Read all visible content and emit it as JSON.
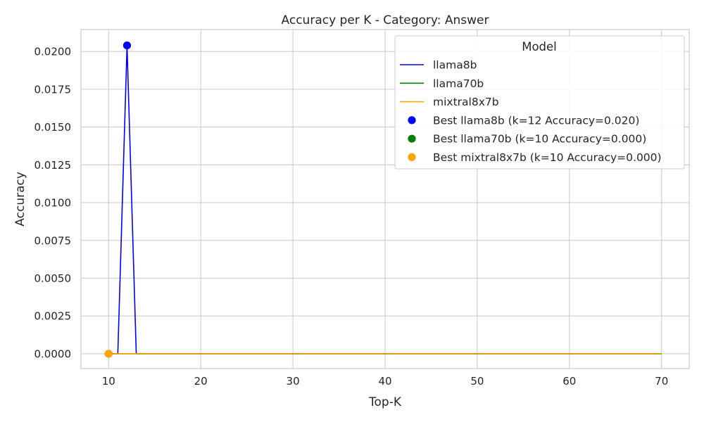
{
  "chart_data": {
    "type": "line",
    "title": "Accuracy per K - Category: Answer",
    "xlabel": "Top-K",
    "ylabel": "Accuracy",
    "xlim": [
      7,
      73
    ],
    "ylim": [
      -0.00098,
      0.02145
    ],
    "xticks": [
      "10",
      "20",
      "30",
      "40",
      "50",
      "60",
      "70"
    ],
    "yticks": [
      "0.0000",
      "0.0025",
      "0.0050",
      "0.0075",
      "0.0100",
      "0.0125",
      "0.0150",
      "0.0175",
      "0.0200"
    ],
    "x": [
      10,
      11,
      12,
      13,
      14,
      15,
      16,
      17,
      18,
      19,
      20,
      21,
      22,
      23,
      24,
      25,
      26,
      27,
      28,
      29,
      30,
      31,
      32,
      33,
      34,
      35,
      36,
      37,
      38,
      39,
      40,
      41,
      42,
      43,
      44,
      45,
      46,
      47,
      48,
      49,
      50,
      51,
      52,
      53,
      54,
      55,
      56,
      57,
      58,
      59,
      60,
      61,
      62,
      63,
      64,
      65,
      66,
      67,
      68,
      69,
      70
    ],
    "series": [
      {
        "name": "llama8b",
        "color": "#0000ff",
        "values": [
          0,
          0,
          0.0204,
          0,
          0,
          0,
          0,
          0,
          0,
          0,
          0,
          0,
          0,
          0,
          0,
          0,
          0,
          0,
          0,
          0,
          0,
          0,
          0,
          0,
          0,
          0,
          0,
          0,
          0,
          0,
          0,
          0,
          0,
          0,
          0,
          0,
          0,
          0,
          0,
          0,
          0,
          0,
          0,
          0,
          0,
          0,
          0,
          0,
          0,
          0,
          0,
          0,
          0,
          0,
          0,
          0,
          0,
          0,
          0,
          0,
          0
        ]
      },
      {
        "name": "llama70b",
        "color": "#008000",
        "values": [
          0,
          0,
          0,
          0,
          0,
          0,
          0,
          0,
          0,
          0,
          0,
          0,
          0,
          0,
          0,
          0,
          0,
          0,
          0,
          0,
          0,
          0,
          0,
          0,
          0,
          0,
          0,
          0,
          0,
          0,
          0,
          0,
          0,
          0,
          0,
          0,
          0,
          0,
          0,
          0,
          0,
          0,
          0,
          0,
          0,
          0,
          0,
          0,
          0,
          0,
          0,
          0,
          0,
          0,
          0,
          0,
          0,
          0,
          0,
          0,
          0
        ]
      },
      {
        "name": "mixtral8x7b",
        "color": "#ffa500",
        "values": [
          0,
          0,
          0,
          0,
          0,
          0,
          0,
          0,
          0,
          0,
          0,
          0,
          0,
          0,
          0,
          0,
          0,
          0,
          0,
          0,
          0,
          0,
          0,
          0,
          0,
          0,
          0,
          0,
          0,
          0,
          0,
          0,
          0,
          0,
          0,
          0,
          0,
          0,
          0,
          0,
          0,
          0,
          0,
          0,
          0,
          0,
          0,
          0,
          0,
          0,
          0,
          0,
          0,
          0,
          0,
          0,
          0,
          0,
          0,
          0,
          0
        ]
      }
    ],
    "best_points": [
      {
        "label": "Best llama8b (k=12 Accuracy=0.020)",
        "x": 12,
        "y": 0.0204,
        "color": "#0000ff"
      },
      {
        "label": "Best llama70b (k=10 Accuracy=0.000)",
        "x": 10,
        "y": 0.0,
        "color": "#008000"
      },
      {
        "label": "Best mixtral8x7b (k=10 Accuracy=0.000)",
        "x": 10,
        "y": 0.0,
        "color": "#ffa500"
      }
    ],
    "legend": {
      "title": "Model",
      "placement": "top-right"
    },
    "grid": true
  }
}
